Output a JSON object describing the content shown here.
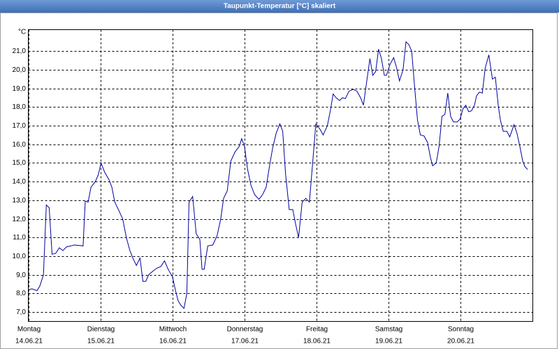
{
  "chart_data": {
    "type": "line",
    "title": "Taupunkt-Temperatur [°C] skaliert",
    "y_unit": "°C",
    "color": "#0000a0",
    "grid": true,
    "xlim": [
      0,
      7
    ],
    "ylim": [
      6.5,
      22.15
    ],
    "xticks": [
      {
        "value": 0,
        "label": "Montag",
        "date": "14.06.21"
      },
      {
        "value": 1,
        "label": "Dienstag",
        "date": "15.06.21"
      },
      {
        "value": 2,
        "label": "Mittwoch",
        "date": "16.06.21"
      },
      {
        "value": 3,
        "label": "Donnerstag",
        "date": "17.06.21"
      },
      {
        "value": 4,
        "label": "Freitag",
        "date": "18.06.21"
      },
      {
        "value": 5,
        "label": "Samstag",
        "date": "19.06.21"
      },
      {
        "value": 6,
        "label": "Sonntag",
        "date": "20.06.21"
      }
    ],
    "yticks": [
      {
        "value": 7,
        "label": "7,0"
      },
      {
        "value": 8,
        "label": "8,0"
      },
      {
        "value": 9,
        "label": "9,0"
      },
      {
        "value": 10,
        "label": "10,0"
      },
      {
        "value": 11,
        "label": "11,0"
      },
      {
        "value": 12,
        "label": "12,0"
      },
      {
        "value": 13,
        "label": "13,0"
      },
      {
        "value": 14,
        "label": "14,0"
      },
      {
        "value": 15,
        "label": "15,0"
      },
      {
        "value": 16,
        "label": "16,0"
      },
      {
        "value": 17,
        "label": "17,0"
      },
      {
        "value": 18,
        "label": "18,0"
      },
      {
        "value": 19,
        "label": "19,0"
      },
      {
        "value": 20,
        "label": "20,0"
      },
      {
        "value": 21,
        "label": "21,0"
      }
    ],
    "x": [
      0,
      0.05,
      0.12,
      0.16,
      0.21,
      0.25,
      0.29,
      0.33,
      0.38,
      0.43,
      0.48,
      0.53,
      0.59,
      0.64,
      0.76,
      0.79,
      0.83,
      0.87,
      0.93,
      0.97,
      1.01,
      1.06,
      1.12,
      1.16,
      1.2,
      1.25,
      1.31,
      1.36,
      1.41,
      1.45,
      1.5,
      1.55,
      1.59,
      1.63,
      1.67,
      1.73,
      1.78,
      1.84,
      1.89,
      1.94,
      2.0,
      2.04,
      2.08,
      2.12,
      2.16,
      2.2,
      2.23,
      2.28,
      2.33,
      2.38,
      2.41,
      2.44,
      2.49,
      2.56,
      2.62,
      2.67,
      2.71,
      2.76,
      2.81,
      2.87,
      2.93,
      2.96,
      3.0,
      3.04,
      3.09,
      3.14,
      3.2,
      3.25,
      3.3,
      3.35,
      3.39,
      3.44,
      3.49,
      3.53,
      3.57,
      3.62,
      3.67,
      3.71,
      3.75,
      3.8,
      3.85,
      3.9,
      3.95,
      3.99,
      4.05,
      4.09,
      4.15,
      4.19,
      4.23,
      4.27,
      4.32,
      4.36,
      4.4,
      4.45,
      4.51,
      4.56,
      4.61,
      4.65,
      4.7,
      4.74,
      4.78,
      4.82,
      4.86,
      4.9,
      4.94,
      4.97,
      5.02,
      5.07,
      5.11,
      5.15,
      5.2,
      5.24,
      5.28,
      5.32,
      5.36,
      5.4,
      5.44,
      5.49,
      5.54,
      5.58,
      5.61,
      5.66,
      5.7,
      5.74,
      5.78,
      5.82,
      5.86,
      5.9,
      5.95,
      5.99,
      6.03,
      6.07,
      6.11,
      6.15,
      6.19,
      6.22,
      6.26,
      6.3,
      6.34,
      6.39,
      6.44,
      6.48,
      6.52,
      6.55,
      6.59,
      6.64,
      6.68,
      6.74,
      6.78,
      6.82,
      6.86,
      6.89,
      6.93
    ],
    "values": [
      8.2,
      8.25,
      8.15,
      8.4,
      9.0,
      12.75,
      12.6,
      10.1,
      10.15,
      10.45,
      10.3,
      10.5,
      10.55,
      10.6,
      10.55,
      12.95,
      12.9,
      13.7,
      14.0,
      14.35,
      15.0,
      14.5,
      14.1,
      13.7,
      12.9,
      12.5,
      12.0,
      11.0,
      10.3,
      9.9,
      9.5,
      9.9,
      8.65,
      8.65,
      9.0,
      9.2,
      9.35,
      9.45,
      9.75,
      9.3,
      8.9,
      8.2,
      7.6,
      7.35,
      7.2,
      8.0,
      12.9,
      13.2,
      11.2,
      10.9,
      9.3,
      9.3,
      10.55,
      10.6,
      11.1,
      12.0,
      13.1,
      13.5,
      15.1,
      15.6,
      15.9,
      16.3,
      15.9,
      14.7,
      13.8,
      13.3,
      13.05,
      13.3,
      13.7,
      14.9,
      15.8,
      16.6,
      17.1,
      16.7,
      14.4,
      12.5,
      12.5,
      11.7,
      11.0,
      12.9,
      13.1,
      12.9,
      15.2,
      17.1,
      16.8,
      16.5,
      17.0,
      17.8,
      18.7,
      18.5,
      18.35,
      18.5,
      18.45,
      18.85,
      18.95,
      18.85,
      18.5,
      18.1,
      19.5,
      20.6,
      19.7,
      19.9,
      21.1,
      20.6,
      19.7,
      19.7,
      20.3,
      20.65,
      20.1,
      19.4,
      20.0,
      21.5,
      21.35,
      21.0,
      19.1,
      17.3,
      16.5,
      16.45,
      16.1,
      15.3,
      14.85,
      15.0,
      15.9,
      17.5,
      17.6,
      18.75,
      17.5,
      17.2,
      17.2,
      17.35,
      17.9,
      18.1,
      17.75,
      17.8,
      18.1,
      18.6,
      18.8,
      18.75,
      20.1,
      20.8,
      19.5,
      19.6,
      18.1,
      17.3,
      16.7,
      16.7,
      16.4,
      17.05,
      16.6,
      15.9,
      15.1,
      14.8,
      14.65
    ]
  }
}
